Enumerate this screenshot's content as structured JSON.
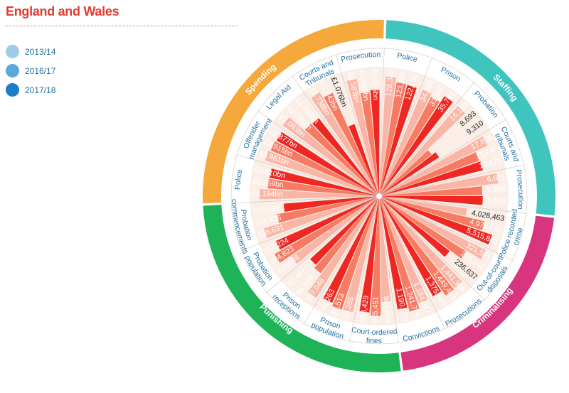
{
  "header": {
    "title": "England and Wales"
  },
  "legend": [
    {
      "label": "2013/14",
      "color": "#9dcbe9"
    },
    {
      "label": "2016/17",
      "color": "#5aa9db"
    },
    {
      "label": "2017/18",
      "color": "#1a7fc6"
    }
  ],
  "colors": {
    "bars": [
      "#f9b6a6",
      "#f77a63",
      "#ee2722"
    ],
    "spending": "#f5a83c",
    "staffing": "#3fc4be",
    "criminalising": "#d8357e",
    "punishing": "#1db356",
    "category_text": "#1f6f9e",
    "wedge_bg": "#faeee7"
  },
  "chart_data": {
    "type": "radial-bar",
    "years": [
      "2013/14",
      "2016/17",
      "2017/18"
    ],
    "sections": [
      {
        "name": "Staffing",
        "categories": [
          {
            "name": [
              "Police"
            ],
            "values": [
              128346,
              123491,
              122786
            ],
            "labels": [
              "128,346",
              "123,491",
              "122,786"
            ]
          },
          {
            "name": [
              "Prison"
            ],
            "values": [
              34366,
              33450,
              35762
            ],
            "labels": [
              "34,366",
              "33,450",
              "35,762"
            ]
          },
          {
            "name": [
              "Probation"
            ],
            "values": [
              16110,
              8693,
              9310
            ],
            "labels": [
              "16,110",
              "8,693",
              "9,310"
            ]
          },
          {
            "name": [
              "Courts and",
              "tribunals"
            ],
            "values": [
              17829,
              15749,
              15875
            ],
            "labels": [
              "17,829",
              "15,749",
              "15,875"
            ]
          },
          {
            "name": [
              "Prosecution"
            ],
            "values": [
              6611,
              5659,
              5688
            ],
            "labels": [
              "6,611",
              "5,659",
              "5,688"
            ]
          }
        ]
      },
      {
        "name": "Criminalising",
        "categories": [
          {
            "name": [
              "Police recorded",
              "crime"
            ],
            "values": [
              4028463,
              4972822,
              5515882
            ],
            "labels": [
              "4,028,463",
              "4,972,822",
              "5,515,882"
            ]
          },
          {
            "name": [
              "Out-of-court",
              "disposals"
            ],
            "values": [
              321591,
              275148,
              236637
            ],
            "labels": [
              "321,591",
              "275,148",
              "236,637"
            ]
          },
          {
            "name": [
              "Prosecutions"
            ],
            "values": [
              1441935,
              1449403,
              1375494
            ],
            "labels": [
              "1,441,935",
              "1,449,403",
              "1,375,494"
            ]
          },
          {
            "name": [
              "Convictions"
            ],
            "values": [
              1184017,
              1241709,
              1190875
            ],
            "labels": [
              "1,184,017",
              "1,241,709",
              "1,190,875"
            ]
          }
        ]
      },
      {
        "name": "Punishing",
        "categories": [
          {
            "name": [
              "Court-ordered",
              "fines"
            ],
            "values": [
              805048,
              915451,
              893429
            ],
            "labels": [
              "805,048",
              "915,451",
              "893,429"
            ]
          },
          {
            "name": [
              "Prison",
              "population"
            ],
            "values": [
              85265,
              85513,
              83263
            ],
            "labels": [
              "85,265",
              "85,513",
              "83,263"
            ]
          },
          {
            "name": [
              "Prison",
              "receptions"
            ],
            "values": [
              107046,
              85515,
              82487
            ],
            "labels": [
              "107,046",
              "85,515",
              "82,487"
            ]
          },
          {
            "name": [
              "Probation",
              "population"
            ],
            "values": [
              110588,
              124823,
              117224
            ],
            "labels": [
              "110,588",
              "124,823",
              "117,224"
            ]
          },
          {
            "name": [
              "Probation",
              "commencements"
            ],
            "values": [
              156631,
              134726,
              123885
            ],
            "labels": [
              "156,631",
              "134,726",
              "123,885"
            ]
          }
        ]
      },
      {
        "name": "Spending",
        "categories": [
          {
            "name": [
              "Police"
            ],
            "values": [
              9.194,
              8.559,
              8.51
            ],
            "labels": [
              "£9.194bn",
              "£8.559bn",
              "£8.510bn"
            ]
          },
          {
            "name": [
              "Offender",
              "management"
            ],
            "values": [
              3.981,
              3.915,
              3.877
            ],
            "labels": [
              "£3.981bn",
              "£3.915bn",
              "£3.877bn"
            ]
          },
          {
            "name": [
              "Legal Aid"
            ],
            "values": [
              2.083,
              1.718,
              1.699
            ],
            "labels": [
              "£2.083bn",
              "£1.718bn",
              "£1.699bn"
            ]
          },
          {
            "name": [
              "Courts and",
              "Tribunals"
            ],
            "values": [
              1.738,
              1.643,
              1.076
            ],
            "labels": [
              "£1.738bn",
              "£1.643bn",
              "£1.076bn"
            ]
          },
          {
            "name": [
              "Prosecution"
            ],
            "values": [
              0.583,
              0.506,
              0.516
            ],
            "labels": [
              "£0.583bn",
              "£0.506bn",
              "£0.516bn"
            ]
          }
        ]
      }
    ]
  }
}
